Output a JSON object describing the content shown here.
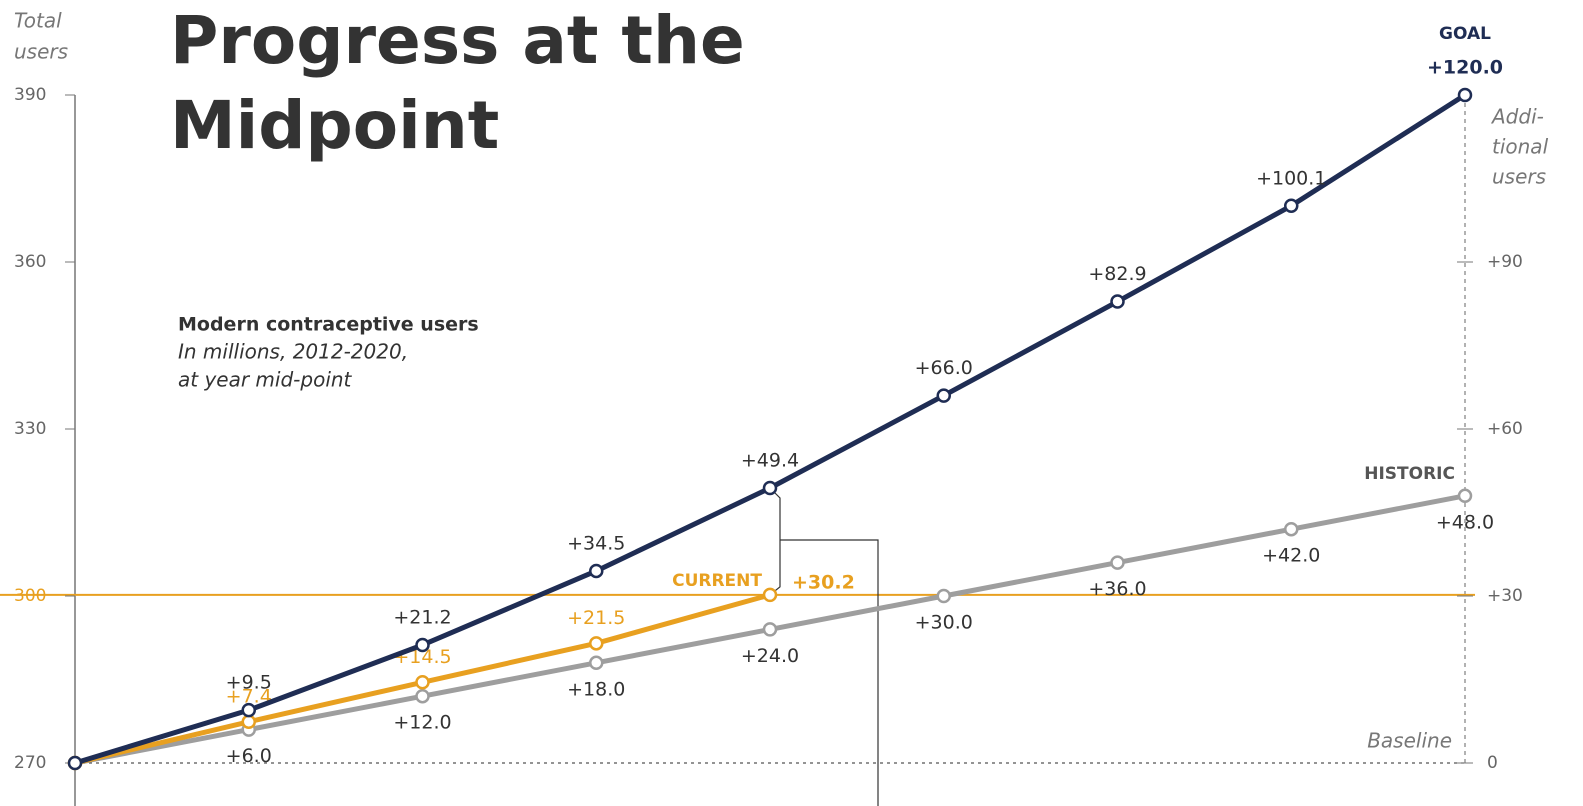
{
  "chart_data": {
    "type": "line",
    "title": [
      "Progress at the",
      "Midpoint"
    ],
    "subtitle": "Modern contraceptive users",
    "note": [
      "In millions, 2012-2020,",
      "at year mid-point"
    ],
    "y_label": [
      "Total",
      "users"
    ],
    "y2_label": [
      "Addi-",
      "tional",
      "users"
    ],
    "annotation": "Baseline",
    "categories": [
      null,
      null,
      null,
      null,
      null,
      null,
      null,
      null,
      null
    ],
    "ylim": [
      270,
      390
    ],
    "yticks": [
      270,
      300,
      330,
      360,
      390
    ],
    "y2lim": [
      0,
      120
    ],
    "y2ticks": [
      0,
      {
        "value": 30,
        "label": "+30"
      },
      {
        "value": 60,
        "label": "+60"
      },
      {
        "value": 90,
        "label": "+90"
      }
    ],
    "series": [
      {
        "name": "GOAL",
        "color": "#1f2d54",
        "axis": "y2",
        "values": [
          0,
          9.5,
          21.2,
          34.5,
          49.4,
          66.0,
          82.9,
          100.1,
          120.0
        ],
        "value_labels": [
          null,
          "+9.5",
          "+21.2",
          "+34.5",
          "+49.4",
          "+66.0",
          "+82.9",
          "+100.1",
          "+120.0"
        ]
      },
      {
        "name": "HISTORIC",
        "color": "#9e9e9e",
        "axis": "y2",
        "values": [
          0,
          6.0,
          12.0,
          18.0,
          24.0,
          30.0,
          36.0,
          42.0,
          48.0
        ],
        "value_labels": [
          null,
          "+6.0",
          "+12.0",
          "+18.0",
          "+24.0",
          "+30.0",
          "+36.0",
          "+42.0",
          "+48.0"
        ]
      },
      {
        "name": "CURRENT",
        "color": "#e8a020",
        "axis": "y2",
        "values": [
          0,
          7.4,
          14.5,
          21.5,
          30.2,
          null,
          null,
          null,
          null
        ],
        "value_labels": [
          null,
          "+7.4",
          "+14.5",
          "+21.5",
          "+30.2",
          null,
          null,
          null,
          null
        ]
      }
    ]
  }
}
